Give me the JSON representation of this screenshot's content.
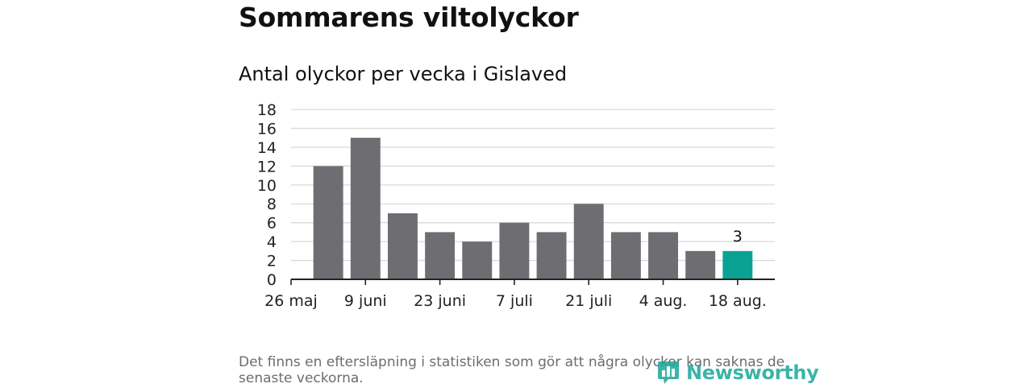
{
  "header": {
    "title": "Sommarens viltolyckor",
    "subtitle": "Antal olyckor per vecka i Gislaved"
  },
  "footer": {
    "note": "Det finns en eftersläpning i statistiken som gör att några olyckor kan saknas de senaste veckorna.",
    "logo_text": "Newsworthy"
  },
  "colors": {
    "bar": "#6e6d72",
    "highlight": "#0aa393",
    "grid": "#d9d9d9",
    "axis": "#222222",
    "brand": "#1aa898"
  },
  "chart_data": {
    "type": "bar",
    "x": [
      "2019-05-26",
      "2019-06-02",
      "2019-06-09",
      "2019-06-16",
      "2019-06-23",
      "2019-06-30",
      "2019-07-07",
      "2019-07-14",
      "2019-07-21",
      "2019-07-28",
      "2019-08-04",
      "2019-08-11",
      "2019-08-18"
    ],
    "values": [
      null,
      12,
      15,
      7,
      5,
      4,
      6,
      5,
      8,
      5,
      5,
      3,
      3
    ],
    "highlight_index": 12,
    "data_labels": [
      {
        "index": 12,
        "text": "3"
      }
    ],
    "x_tick_labels": [
      {
        "index": 0,
        "text": "26 maj"
      },
      {
        "index": 2,
        "text": "9 juni"
      },
      {
        "index": 4,
        "text": "23 juni"
      },
      {
        "index": 6,
        "text": "7 juli"
      },
      {
        "index": 8,
        "text": "21 juli"
      },
      {
        "index": 10,
        "text": "4 aug."
      },
      {
        "index": 12,
        "text": "18 aug."
      }
    ],
    "y_ticks": [
      0,
      2,
      4,
      6,
      8,
      10,
      12,
      14,
      16,
      18
    ],
    "ylim": [
      0,
      18
    ],
    "grid": true,
    "legend": "none"
  }
}
